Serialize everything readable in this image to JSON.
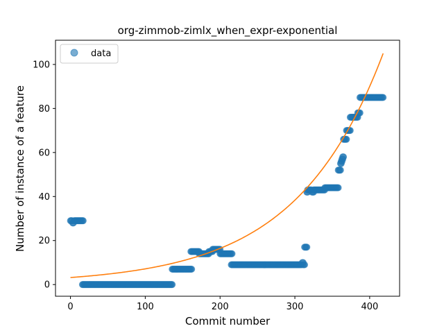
{
  "chart_data": {
    "type": "scatter",
    "title": "org-zimmob-zimlx_when_expr-exponential",
    "xlabel": "Commit number",
    "ylabel": "Number of instance of a feature",
    "xlim": [
      -20,
      440
    ],
    "ylim": [
      -5.3,
      111
    ],
    "xticks": [
      0,
      100,
      200,
      300,
      400
    ],
    "yticks": [
      0,
      20,
      40,
      60,
      80,
      100
    ],
    "grid": false,
    "legend": {
      "placement": "top-left",
      "entries": [
        "data"
      ]
    },
    "colors": {
      "data": "#1f77b4",
      "fit": "#ff7f0e"
    },
    "series": [
      {
        "name": "data",
        "kind": "scatter",
        "segments": [
          {
            "x_start": 0,
            "x_end": 2,
            "y": 29
          },
          {
            "x_start": 3,
            "x_end": 4,
            "y": 28
          },
          {
            "x_start": 5,
            "x_end": 17,
            "y": 29
          },
          {
            "x_start": 16,
            "x_end": 136,
            "y": 0
          },
          {
            "x_start": 136,
            "x_end": 162,
            "y": 7
          },
          {
            "x_start": 161,
            "x_end": 172,
            "y": 15
          },
          {
            "x_start": 172,
            "x_end": 185,
            "y": 14
          },
          {
            "x_start": 185,
            "x_end": 190,
            "y": 15
          },
          {
            "x_start": 190,
            "x_end": 200,
            "y": 16
          },
          {
            "x_start": 200,
            "x_end": 216,
            "y": 14
          },
          {
            "x_start": 215,
            "x_end": 309,
            "y": 9
          },
          {
            "x_start": 310,
            "x_end": 311,
            "y": 10
          },
          {
            "x_start": 311,
            "x_end": 313,
            "y": 9
          },
          {
            "x_start": 313,
            "x_end": 316,
            "y": 17
          },
          {
            "x_start": 316,
            "x_end": 317,
            "y": 42
          },
          {
            "x_start": 317,
            "x_end": 322,
            "y": 43
          },
          {
            "x_start": 323,
            "x_end": 325,
            "y": 42
          },
          {
            "x_start": 325,
            "x_end": 340,
            "y": 43
          },
          {
            "x_start": 340,
            "x_end": 358,
            "y": 44
          },
          {
            "x_start": 358,
            "x_end": 361,
            "y": 52
          },
          {
            "x_start": 361,
            "x_end": 362,
            "y": 55
          },
          {
            "x_start": 362,
            "x_end": 363,
            "y": 56
          },
          {
            "x_start": 363,
            "x_end": 364,
            "y": 57
          },
          {
            "x_start": 364,
            "x_end": 365,
            "y": 58
          },
          {
            "x_start": 365,
            "x_end": 369,
            "y": 66
          },
          {
            "x_start": 369,
            "x_end": 374,
            "y": 70
          },
          {
            "x_start": 374,
            "x_end": 384,
            "y": 76
          },
          {
            "x_start": 384,
            "x_end": 387,
            "y": 78
          },
          {
            "x_start": 387,
            "x_end": 418,
            "y": 85
          }
        ]
      },
      {
        "name": "",
        "kind": "line",
        "model": "exponential",
        "a": 2.9,
        "b": 0.00858,
        "c": 0.3,
        "x_range": [
          0,
          418
        ]
      }
    ]
  }
}
